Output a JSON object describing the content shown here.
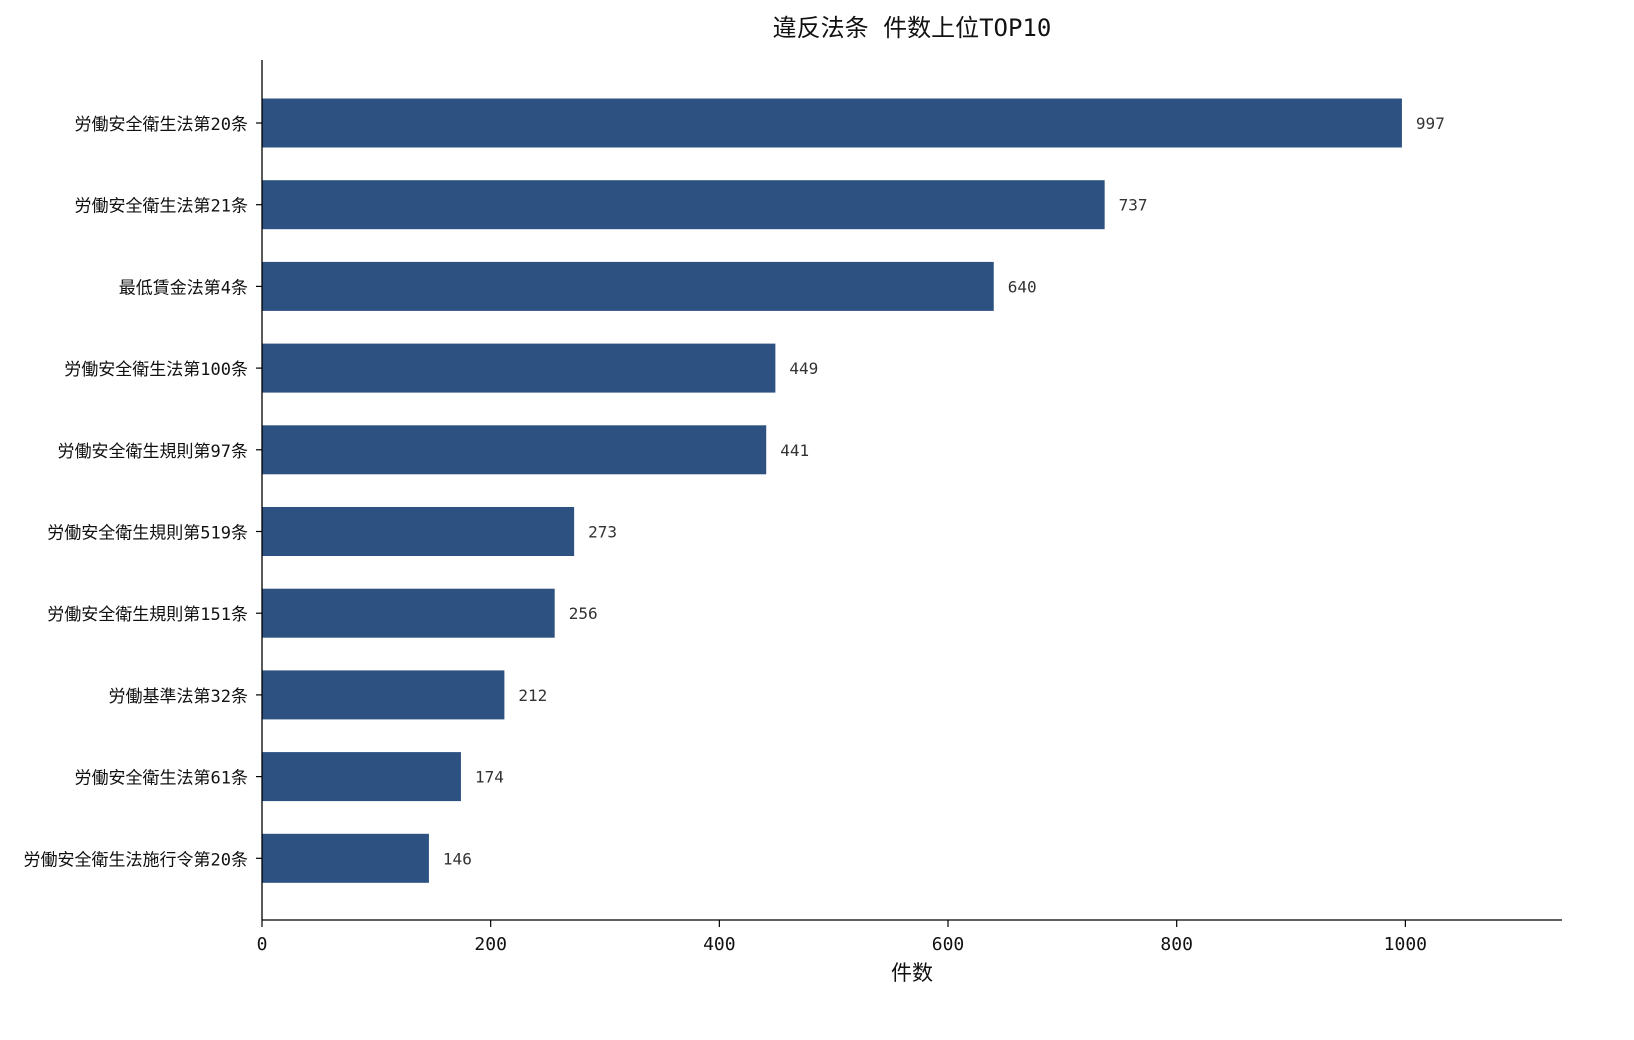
{
  "chart_data": {
    "type": "bar",
    "orientation": "horizontal",
    "title": "違反法条 件数上位TOP10",
    "xlabel": "件数",
    "ylabel": "",
    "xlim": [
      0,
      1137
    ],
    "xticks": [
      0,
      200,
      400,
      600,
      800,
      1000
    ],
    "grid": false,
    "categories": [
      "労働安全衛生法第20条",
      "労働安全衛生法第21条",
      "最低賃金法第4条",
      "労働安全衛生法第100条",
      "労働安全衛生規則第97条",
      "労働安全衛生規則第519条",
      "労働安全衛生規則第151条",
      "労働基準法第32条",
      "労働安全衛生法第61条",
      "労働安全衛生法施行令第20条"
    ],
    "values": [
      997,
      737,
      640,
      449,
      441,
      273,
      256,
      212,
      174,
      146
    ],
    "bar_color": "#2d5281"
  }
}
